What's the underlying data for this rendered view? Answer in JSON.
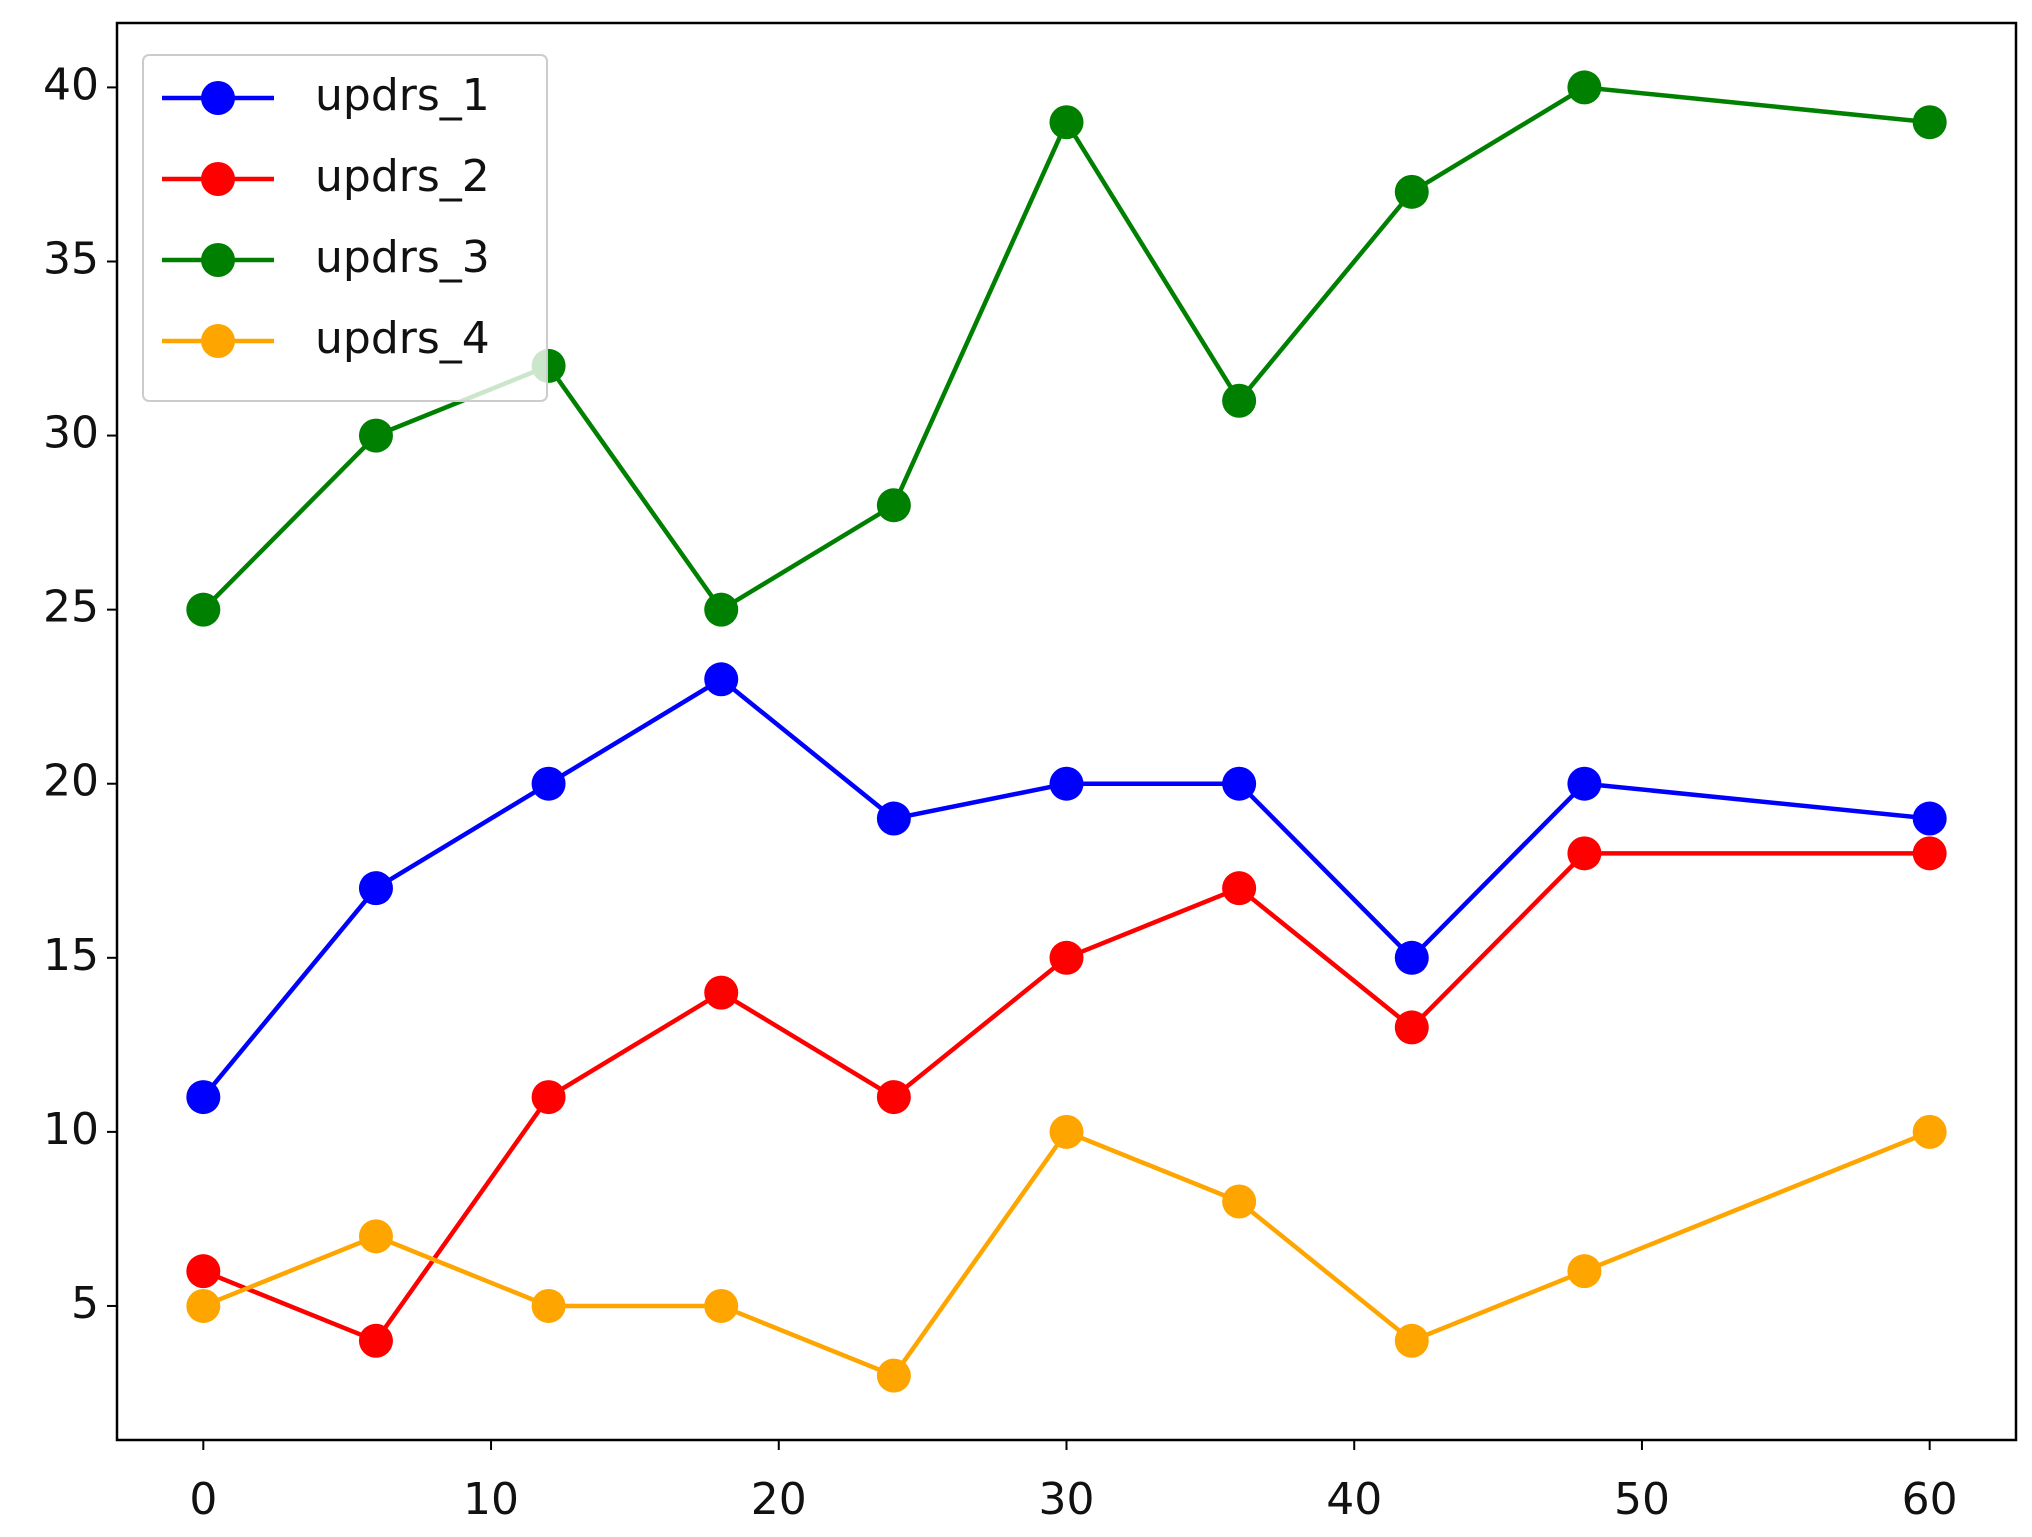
{
  "chart_data": {
    "type": "line",
    "x": [
      0,
      6,
      12,
      18,
      24,
      30,
      36,
      42,
      48,
      60
    ],
    "series": [
      {
        "name": "updrs_1",
        "color": "#0000ff",
        "values": [
          11,
          17,
          20,
          23,
          19,
          20,
          20,
          15,
          20,
          19
        ]
      },
      {
        "name": "updrs_2",
        "color": "#ff0000",
        "values": [
          6,
          4,
          11,
          14,
          11,
          15,
          17,
          13,
          18,
          18
        ]
      },
      {
        "name": "updrs_3",
        "color": "#008000",
        "values": [
          25,
          30,
          32,
          25,
          28,
          39,
          31,
          37,
          40,
          39
        ]
      },
      {
        "name": "updrs_4",
        "color": "#ffa500",
        "values": [
          5,
          7,
          5,
          5,
          3,
          10,
          8,
          4,
          6,
          10
        ]
      }
    ],
    "xlim": [
      -3,
      63
    ],
    "xticks": [
      0,
      10,
      20,
      30,
      40,
      50,
      60
    ],
    "ylim": [
      1.15,
      41.85
    ],
    "yticks": [
      5,
      10,
      15,
      20,
      25,
      30,
      35,
      40
    ],
    "legend": "upper left",
    "grid": false
  }
}
